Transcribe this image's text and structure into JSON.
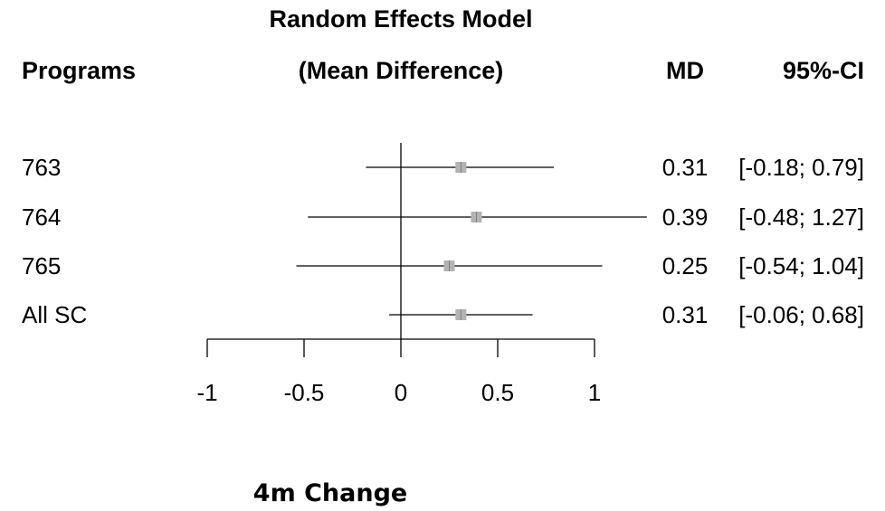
{
  "header": {
    "model_title": "Random Effects Model",
    "programs_label": "Programs",
    "effect_label": "(Mean Difference)",
    "md_label": "MD",
    "ci_label": "95%-CI"
  },
  "caption": "4m Change",
  "colors": {
    "box": "#b3b3b3",
    "line": "#000000"
  },
  "chart_data": {
    "type": "forest",
    "title": "Random Effects Model",
    "xlabel": "(Mean Difference)",
    "xlim": [
      -1,
      1
    ],
    "x_ticks": [
      -1,
      -0.5,
      0,
      0.5,
      1
    ],
    "x_tick_labels": [
      "-1",
      "-0.5",
      "0",
      "0.5",
      "1"
    ],
    "reference_line": 0,
    "rows": [
      {
        "label": "763",
        "md": 0.31,
        "ci_low": -0.18,
        "ci_high": 0.79,
        "md_text": "0.31",
        "ci_text": "[-0.18; 0.79]"
      },
      {
        "label": "764",
        "md": 0.39,
        "ci_low": -0.48,
        "ci_high": 1.27,
        "md_text": "0.39",
        "ci_text": "[-0.48; 1.27]"
      },
      {
        "label": "765",
        "md": 0.25,
        "ci_low": -0.54,
        "ci_high": 1.04,
        "md_text": "0.25",
        "ci_text": "[-0.54; 1.04]"
      },
      {
        "label": "All SC",
        "md": 0.31,
        "ci_low": -0.06,
        "ci_high": 0.68,
        "md_text": "0.31",
        "ci_text": "[-0.06; 0.68]"
      }
    ]
  }
}
